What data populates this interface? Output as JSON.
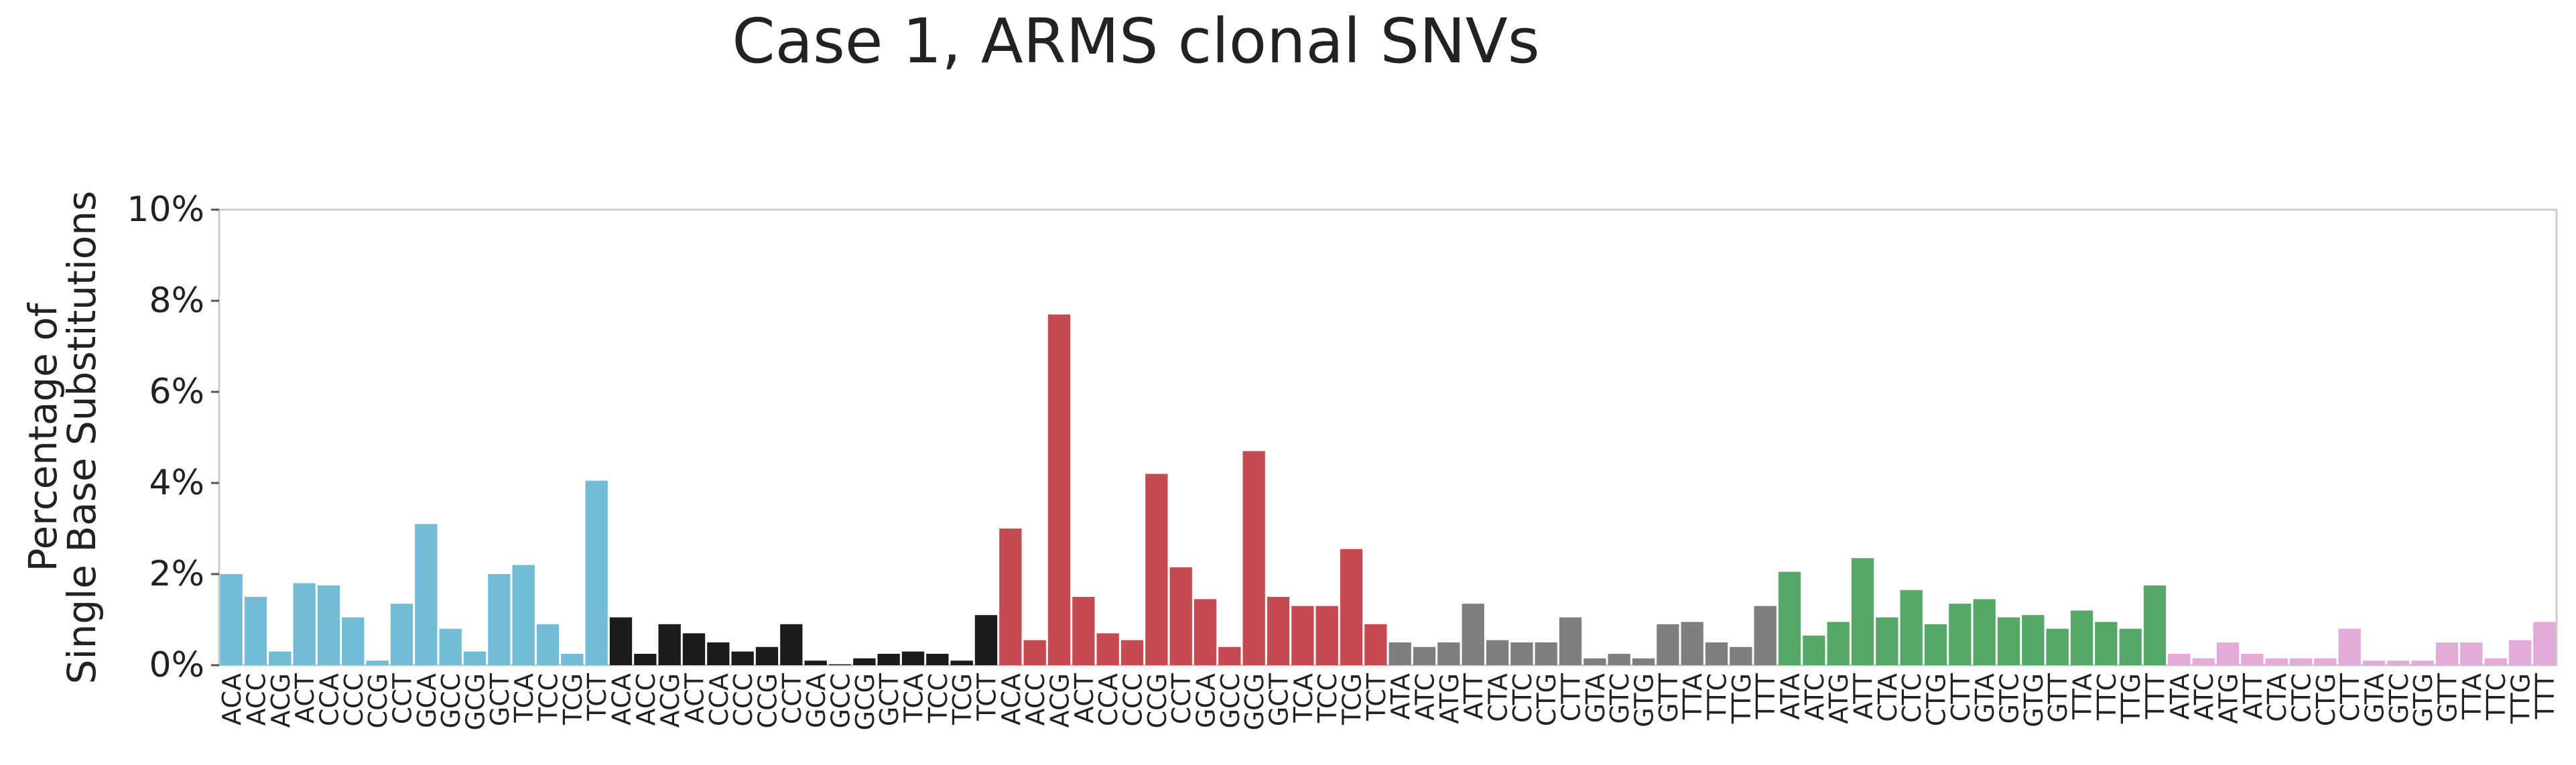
{
  "chart_data": {
    "type": "bar",
    "title": "Case 1, ARMS clonal SNVs",
    "ylabel_lines": [
      "Percentage of",
      "Single Base Substitutions"
    ],
    "xlabel": "",
    "ylim": [
      0,
      10
    ],
    "yticks": [
      0,
      2,
      4,
      6,
      8,
      10
    ],
    "ytick_format": "{v}%",
    "grid": false,
    "groups": [
      {
        "color": "#72bcd5",
        "categories": [
          "ACA",
          "ACC",
          "ACG",
          "ACT",
          "CCA",
          "CCC",
          "CCG",
          "CCT",
          "GCA",
          "GCC",
          "GCG",
          "GCT",
          "TCA",
          "TCC",
          "TCG",
          "TCT"
        ],
        "values": [
          2.0,
          1.5,
          0.3,
          1.8,
          1.75,
          1.05,
          0.1,
          1.35,
          3.1,
          0.8,
          0.3,
          2.0,
          2.2,
          0.9,
          0.25,
          4.05
        ]
      },
      {
        "color": "#1b1b1b",
        "categories": [
          "ACA",
          "ACC",
          "ACG",
          "ACT",
          "CCA",
          "CCC",
          "CCG",
          "CCT",
          "GCA",
          "GCC",
          "GCG",
          "GCT",
          "TCA",
          "TCC",
          "TCG",
          "TCT"
        ],
        "values": [
          1.05,
          0.25,
          0.9,
          0.7,
          0.5,
          0.3,
          0.4,
          0.9,
          0.1,
          0.02,
          0.15,
          0.25,
          0.3,
          0.25,
          0.1,
          1.1
        ]
      },
      {
        "color": "#c64a52",
        "categories": [
          "ACA",
          "ACC",
          "ACG",
          "ACT",
          "CCA",
          "CCC",
          "CCG",
          "CCT",
          "GCA",
          "GCC",
          "GCG",
          "GCT",
          "TCA",
          "TCC",
          "TCG",
          "TCT"
        ],
        "values": [
          3.0,
          0.55,
          7.7,
          1.5,
          0.7,
          0.55,
          4.2,
          2.15,
          1.45,
          0.4,
          4.7,
          1.5,
          1.3,
          1.3,
          2.55,
          0.9
        ]
      },
      {
        "color": "#7f7f7f",
        "categories": [
          "ATA",
          "ATC",
          "ATG",
          "ATT",
          "CTA",
          "CTC",
          "CTG",
          "CTT",
          "GTA",
          "GTC",
          "GTG",
          "GTT",
          "TTA",
          "TTC",
          "TTG",
          "TTT"
        ],
        "values": [
          0.5,
          0.4,
          0.5,
          1.35,
          0.55,
          0.5,
          0.5,
          1.05,
          0.15,
          0.25,
          0.15,
          0.9,
          0.95,
          0.5,
          0.4,
          1.3
        ]
      },
      {
        "color": "#55a868",
        "categories": [
          "ATA",
          "ATC",
          "ATG",
          "ATT",
          "CTA",
          "CTC",
          "CTG",
          "CTT",
          "GTA",
          "GTC",
          "GTG",
          "GTT",
          "TTA",
          "TTC",
          "TTG",
          "TTT"
        ],
        "values": [
          2.05,
          0.65,
          0.95,
          2.35,
          1.05,
          1.65,
          0.9,
          1.35,
          1.45,
          1.05,
          1.1,
          0.8,
          1.2,
          0.95,
          0.8,
          1.75
        ]
      },
      {
        "color": "#e3abd7",
        "categories": [
          "ATA",
          "ATC",
          "ATG",
          "ATT",
          "CTA",
          "CTC",
          "CTG",
          "CTT",
          "GTA",
          "GTC",
          "GTG",
          "GTT",
          "TTA",
          "TTC",
          "TTG",
          "TTT"
        ],
        "values": [
          0.25,
          0.15,
          0.5,
          0.25,
          0.15,
          0.15,
          0.15,
          0.8,
          0.1,
          0.1,
          0.1,
          0.5,
          0.5,
          0.15,
          0.55,
          0.95
        ]
      }
    ]
  }
}
